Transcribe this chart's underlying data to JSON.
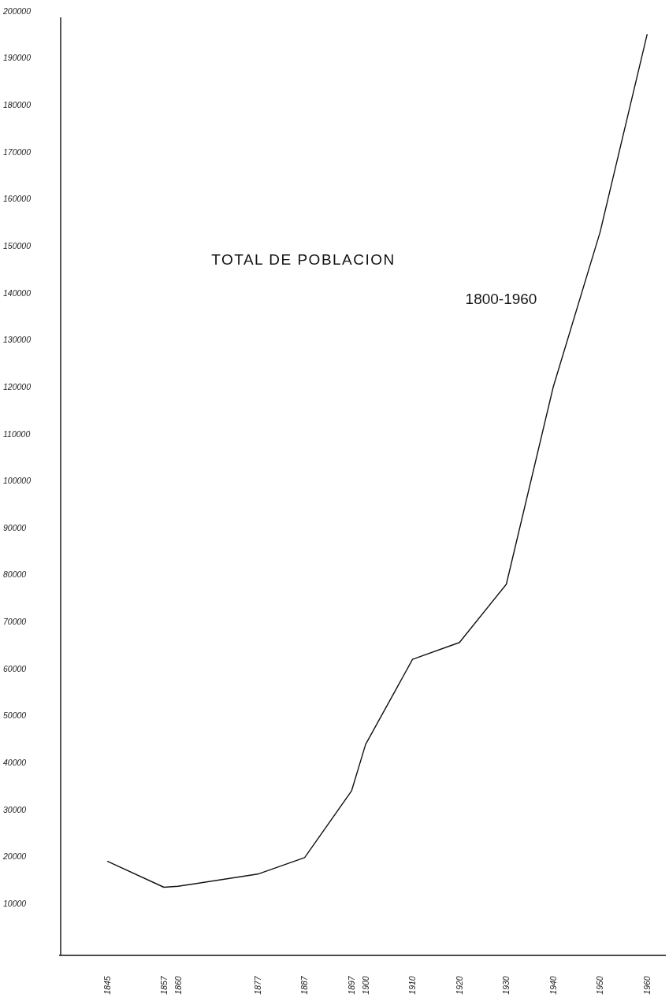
{
  "chart_data": {
    "type": "line",
    "title": "TOTAL DE POBLACION",
    "subtitle": "1800-1960",
    "x": [
      1845,
      1857,
      1860,
      1877,
      1887,
      1897,
      1900,
      1910,
      1920,
      1930,
      1940,
      1950,
      1960
    ],
    "values": [
      19000,
      13500,
      13700,
      16300,
      19800,
      34000,
      43900,
      62000,
      65600,
      78000,
      120000,
      153000,
      195000
    ],
    "color": "#111111",
    "xlim": [
      1835,
      1964
    ],
    "xticks": [
      1845,
      1857,
      1860,
      1877,
      1887,
      1897,
      1900,
      1910,
      1920,
      1930,
      1940,
      1950,
      1960
    ],
    "ylim": [
      -1000,
      200000
    ],
    "yticks": [
      10000,
      20000,
      30000,
      40000,
      50000,
      60000,
      70000,
      80000,
      90000,
      100000,
      110000,
      120000,
      130000,
      140000,
      150000,
      160000,
      170000,
      180000,
      190000,
      200000
    ],
    "grid": false,
    "marker": "none",
    "line_style": "solid"
  }
}
